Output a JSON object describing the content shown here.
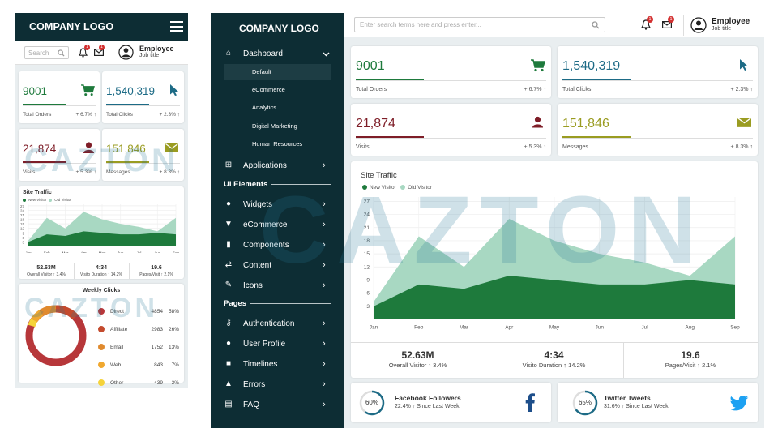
{
  "brand": {
    "logo": "COMPANY LOGO",
    "watermark": "CAZTON"
  },
  "colors": {
    "navy": "#0d2d34",
    "green": "#1e7a3c",
    "blue": "#1d6b86",
    "maroon": "#7e1d27",
    "olive": "#9a9c21",
    "lightgreen": "#a8d8c2"
  },
  "user": {
    "name": "Employee",
    "title": "Job title"
  },
  "search": {
    "mobile_placeholder": "Search",
    "desktop_placeholder": "Enter search terms here and press enter..."
  },
  "notifications": {
    "bell_count": "1",
    "mail_count": "1"
  },
  "tiles": [
    {
      "value": "9001",
      "label": "Total Orders",
      "change": "+ 6.7%",
      "icon": "cart-icon"
    },
    {
      "value": "1,540,319",
      "label": "Total Clicks",
      "change": "+ 2.3%",
      "icon": "cursor-icon"
    },
    {
      "value": "21,874",
      "label": "Visits",
      "change": "+ 5.3%",
      "icon": "user-icon"
    },
    {
      "value": "151,846",
      "label": "Messages",
      "change": "+ 8.3%",
      "icon": "envelope-icon"
    }
  ],
  "site_traffic": {
    "title": "Site Traffic",
    "legend": [
      "New Visitor",
      "Old Visitor"
    ],
    "stats": [
      {
        "value": "52.63M",
        "label": "Overall Visitor",
        "change": "3.4%"
      },
      {
        "value": "4:34",
        "label": "Visito Duration",
        "change": "14.2%"
      },
      {
        "value": "19.6",
        "label": "Pages/Visit",
        "change": "2.1%"
      }
    ]
  },
  "weekly_clicks": {
    "title": "Weekly Clicks",
    "rows": [
      {
        "name": "Direct",
        "value": "4854",
        "pct": "58%",
        "color": "#b7373a"
      },
      {
        "name": "Affiliate",
        "value": "2983",
        "pct": "26%",
        "color": "#c44b2e"
      },
      {
        "name": "Email",
        "value": "1752",
        "pct": "13%",
        "color": "#e08a2e"
      },
      {
        "name": "Web",
        "value": "843",
        "pct": "7%",
        "color": "#f0a830"
      },
      {
        "name": "Other",
        "value": "439",
        "pct": "3%",
        "color": "#f5d33a"
      }
    ]
  },
  "social": [
    {
      "pct": "60%",
      "name": "Facebook Followers",
      "sub": "22.4%",
      "since": "Since Last Week",
      "icon": "facebook-icon"
    },
    {
      "pct": "65%",
      "name": "Twitter Tweets",
      "sub": "31.6%",
      "since": "Since Last Week",
      "icon": "twitter-icon"
    }
  ],
  "sidebar": {
    "dashboard": "Dashboard",
    "dashboard_items": [
      "Default",
      "eCommerce",
      "Analytics",
      "Digital Marketing",
      "Human Resources"
    ],
    "applications": "Applications",
    "ui_section": "UI Elements",
    "ui_items": [
      "Widgets",
      "eCommerce",
      "Components",
      "Content",
      "Icons"
    ],
    "pages_section": "Pages",
    "pages_items": [
      "Authentication",
      "User Profile",
      "Timelines",
      "Errors",
      "FAQ"
    ]
  },
  "chart_data": {
    "type": "area",
    "categories": [
      "Jan",
      "Feb",
      "Mar",
      "Apr",
      "May",
      "Jun",
      "Jul",
      "Aug",
      "Sep"
    ],
    "yticks": [
      3,
      6,
      9,
      12,
      15,
      18,
      21,
      24,
      27
    ],
    "ylim": [
      0,
      28
    ],
    "series": [
      {
        "name": "Old Visitor",
        "values": [
          4,
          19,
          12,
          23,
          18,
          15,
          13,
          10,
          19
        ],
        "color": "#a8d8c2"
      },
      {
        "name": "New Visitor",
        "values": [
          3,
          8,
          7,
          10,
          9,
          8,
          8,
          9,
          8
        ],
        "color": "#1e7a3c"
      }
    ]
  }
}
